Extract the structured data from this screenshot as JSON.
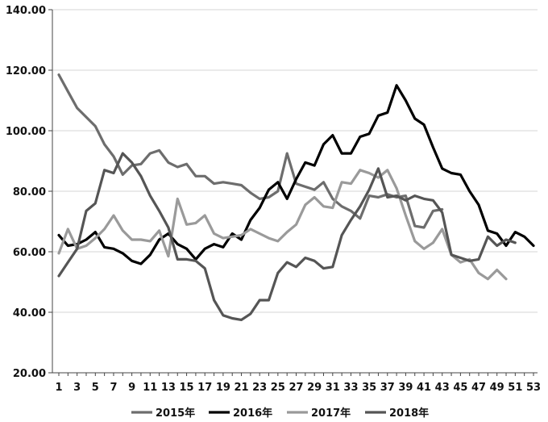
{
  "chart_data": {
    "type": "line",
    "title": "",
    "xlabel": "",
    "ylabel": "",
    "ylim": [
      20,
      140
    ],
    "y_ticks": [
      20,
      40,
      60,
      80,
      100,
      120,
      140
    ],
    "y_tick_labels": [
      "20.00",
      "40.00",
      "60.00",
      "80.00",
      "100.00",
      "120.00",
      "140.00"
    ],
    "xlim": [
      1,
      53
    ],
    "x_ticks": [
      1,
      3,
      5,
      7,
      9,
      11,
      13,
      15,
      17,
      19,
      21,
      23,
      25,
      27,
      29,
      31,
      33,
      35,
      37,
      39,
      41,
      43,
      45,
      47,
      49,
      51,
      53
    ],
    "grid": "horizontal",
    "legend_position": "bottom",
    "series": [
      {
        "name": "2015年",
        "color": "#6d6d6d",
        "x": [
          1,
          2,
          3,
          4,
          5,
          6,
          7,
          8,
          9,
          10,
          11,
          12,
          13,
          14,
          15,
          16,
          17,
          18,
          19,
          20,
          21,
          22,
          23,
          24,
          25,
          26,
          27,
          28,
          29,
          30,
          31,
          32,
          33,
          34,
          35,
          36,
          37,
          38,
          39,
          40,
          41,
          42,
          43
        ],
        "values": [
          118.5,
          113,
          107.5,
          104.5,
          101.5,
          95.5,
          91.5,
          85.5,
          88.5,
          89,
          92.5,
          93.5,
          89.5,
          88,
          89,
          85,
          85,
          82.5,
          83,
          82.5,
          82,
          79.5,
          77.5,
          78,
          80,
          92.5,
          82.5,
          81.5,
          80.5,
          83,
          77.5,
          75,
          73.5,
          71,
          78.5,
          78,
          79,
          78,
          78.5,
          68.5,
          68,
          73.5,
          74
        ]
      },
      {
        "name": "2016年",
        "color": "#000000",
        "x": [
          1,
          2,
          3,
          4,
          5,
          6,
          7,
          8,
          9,
          10,
          11,
          12,
          13,
          14,
          15,
          16,
          17,
          18,
          19,
          20,
          21,
          22,
          23,
          24,
          25,
          26,
          27,
          28,
          29,
          30,
          31,
          32,
          33,
          34,
          35,
          36,
          37,
          38,
          39,
          40,
          41,
          42,
          43,
          44,
          45,
          46,
          47,
          48,
          49,
          50,
          51,
          52,
          53
        ],
        "values": [
          65.5,
          62,
          62.5,
          64,
          66.5,
          61.5,
          61,
          59.5,
          57,
          56,
          59,
          64,
          66,
          62.5,
          61,
          57.5,
          61,
          62.5,
          61.5,
          66,
          64,
          70.5,
          74.5,
          80.5,
          83,
          77.5,
          84,
          89.5,
          88.5,
          95.5,
          98.5,
          92.5,
          92.5,
          98,
          99,
          105,
          106,
          115,
          110,
          104,
          102,
          94.5,
          87.5,
          86,
          85.5,
          80,
          75.5,
          67,
          66,
          62,
          66.5,
          65,
          62
        ]
      },
      {
        "name": "2017年",
        "color": "#9a9a9a",
        "x": [
          1,
          2,
          3,
          4,
          5,
          6,
          7,
          8,
          9,
          10,
          11,
          12,
          13,
          14,
          15,
          16,
          17,
          18,
          19,
          20,
          21,
          22,
          23,
          24,
          25,
          26,
          27,
          28,
          29,
          30,
          31,
          32,
          33,
          34,
          35,
          36,
          37,
          38,
          39,
          40,
          41,
          42,
          43,
          44,
          45,
          46,
          47,
          48,
          49,
          50
        ],
        "values": [
          59.5,
          67.5,
          61,
          62,
          64.5,
          67.5,
          72,
          67,
          64,
          64,
          63.5,
          67,
          58.5,
          77.5,
          69,
          69.5,
          72,
          66,
          64.5,
          65,
          65.5,
          67.5,
          66,
          64.5,
          63.5,
          66.5,
          69,
          75.5,
          78,
          75,
          74.5,
          83,
          82.5,
          87,
          86,
          84.5,
          87,
          81,
          72,
          63.5,
          61,
          63,
          67.5,
          59,
          56.5,
          57.5,
          53,
          51,
          54,
          51
        ]
      },
      {
        "name": "2018年",
        "color": "#555555",
        "x": [
          1,
          2,
          3,
          4,
          5,
          6,
          7,
          8,
          9,
          10,
          11,
          12,
          13,
          14,
          15,
          16,
          17,
          18,
          19,
          20,
          21,
          22,
          23,
          24,
          25,
          26,
          27,
          28,
          29,
          30,
          31,
          32,
          33,
          34,
          35,
          36,
          37,
          38,
          39,
          40,
          41,
          42,
          43,
          44,
          45,
          46,
          47,
          48,
          49,
          50,
          51
        ],
        "values": [
          52,
          56.5,
          61,
          73.5,
          76,
          87,
          86,
          92.5,
          89.5,
          85,
          78.5,
          73.5,
          68,
          57.5,
          57.5,
          57,
          54.5,
          44,
          39,
          38,
          37.5,
          39.5,
          44,
          44,
          53,
          56.5,
          55,
          58,
          57,
          54.5,
          55,
          65.5,
          70.5,
          75,
          80.5,
          87.5,
          78,
          78.5,
          77,
          78.5,
          77.5,
          77,
          73,
          59,
          58,
          57,
          57.5,
          65,
          62,
          64,
          63
        ]
      }
    ]
  }
}
